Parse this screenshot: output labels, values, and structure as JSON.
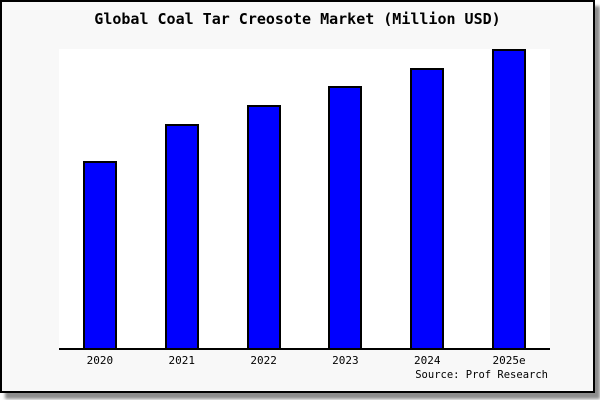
{
  "chart_data": {
    "type": "bar",
    "title": "Global Coal Tar Creosote Market (Million USD)",
    "categories": [
      "2020",
      "2021",
      "2022",
      "2023",
      "2024",
      "2025e"
    ],
    "values": [
      62.5,
      75.0,
      81.3,
      87.6,
      93.6,
      100.0
    ],
    "xlabel": "",
    "ylabel": "",
    "ylim": [
      0,
      100
    ],
    "grid": false,
    "legend": false,
    "y_axis_visible": false,
    "note": "y-axis has no ticks, labels or gridlines; values are relative estimates scaled so 2025e = 100",
    "bar_color": "#0000ff",
    "bar_edge_color": "#000000"
  },
  "source": {
    "label": "Source: Prof Research"
  },
  "colors": {
    "figure_background": "#f8f8f8",
    "plot_background": "#ffffff",
    "bar": "#0000ff",
    "border": "#000000",
    "shadow": "#8c8c8c"
  }
}
